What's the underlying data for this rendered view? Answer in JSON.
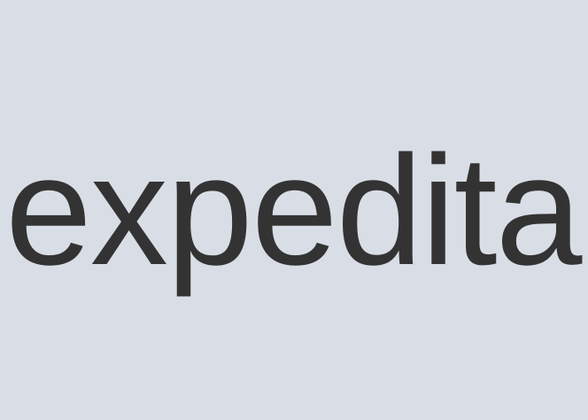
{
  "content": {
    "word": "expedita"
  },
  "colors": {
    "background": "#d9dde5",
    "text": "#333333"
  }
}
